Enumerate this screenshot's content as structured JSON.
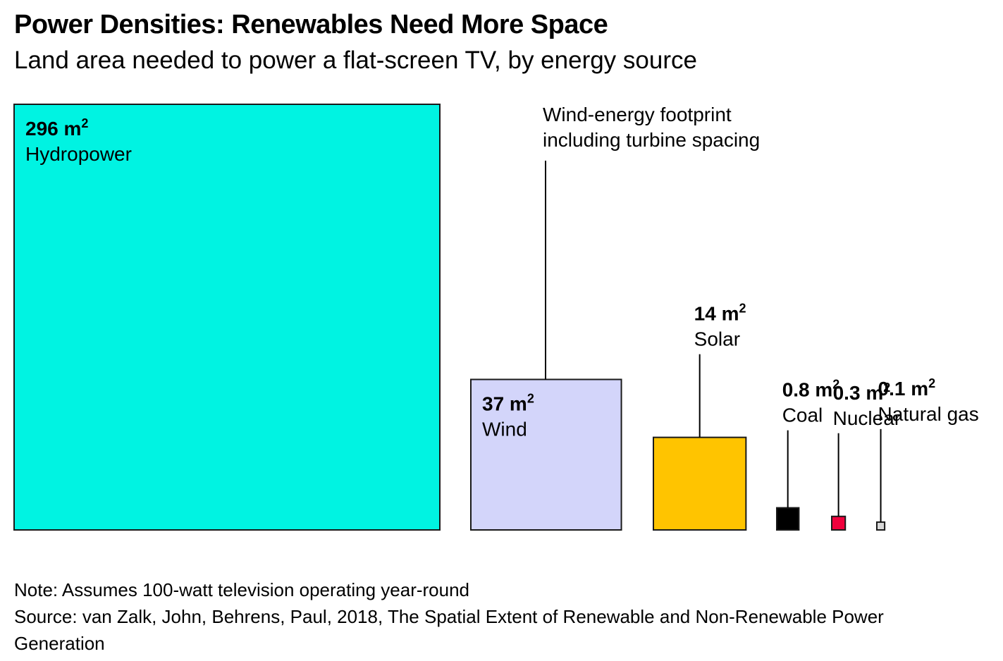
{
  "header": {
    "title": "Power Densities: Renewables Need More Space",
    "subtitle": "Land area needed to power a flat-screen TV, by energy source"
  },
  "chart_data": {
    "type": "proportional-squares",
    "unit": "m",
    "unit_superscript": "2",
    "items": [
      {
        "name": "Hydropower",
        "value": 296,
        "value_label": "296",
        "color": "#00F3E2"
      },
      {
        "name": "Wind",
        "value": 37,
        "value_label": "37",
        "color": "#D3D5FA"
      },
      {
        "name": "Solar",
        "value": 14,
        "value_label": "14",
        "color": "#FFC400"
      },
      {
        "name": "Coal",
        "value": 0.8,
        "value_label": "0.8",
        "color": "#000000"
      },
      {
        "name": "Nuclear",
        "value": 0.3,
        "value_label": "0.3",
        "color": "#F0003C"
      },
      {
        "name": "Natural gas",
        "value": 0.1,
        "value_label": "0.1",
        "color": "#D9D9D9"
      }
    ],
    "annotation": [
      "Wind-energy footprint",
      "including turbine spacing"
    ]
  },
  "footer": {
    "note": "Note: Assumes 100-watt television operating year-round",
    "source": "Source: van Zalk, John, Behrens, Paul, 2018, The Spatial Extent of Renewable and Non-Renewable Power Generation"
  }
}
